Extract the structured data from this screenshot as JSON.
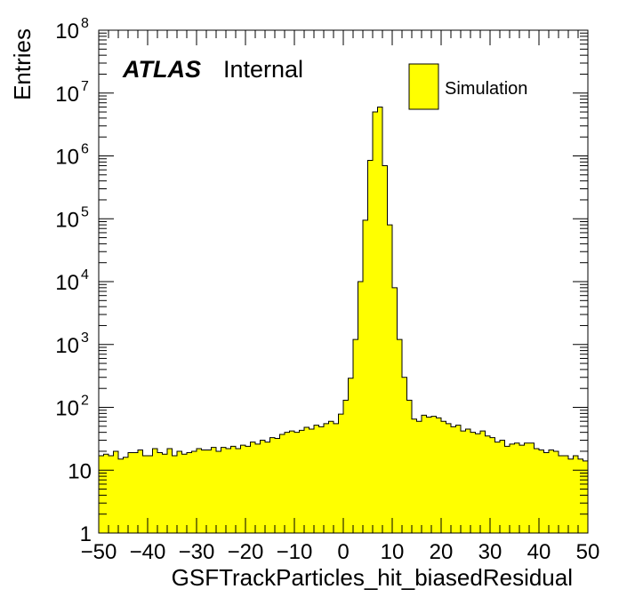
{
  "chart_data": {
    "type": "histogram",
    "title": "",
    "xlabel": "GSFTrackParticles_hit_biasedResidual",
    "ylabel": "Entries",
    "xlim": [
      -50,
      50
    ],
    "ylim": [
      1,
      100000000
    ],
    "yscale": "log",
    "x_tick_labels": [
      "−50",
      "−40",
      "−30",
      "−20",
      "−10",
      "0",
      "10",
      "20",
      "30",
      "40",
      "50"
    ],
    "x_tick_values": [
      -50,
      -40,
      -30,
      -20,
      -10,
      0,
      10,
      20,
      30,
      40,
      50
    ],
    "y_tick_values": [
      1,
      10,
      100,
      1000,
      10000,
      100000,
      1000000,
      10000000,
      100000000
    ],
    "y_tick_labels": [
      {
        "base": "1",
        "exp": ""
      },
      {
        "base": "10",
        "exp": ""
      },
      {
        "base": "10",
        "exp": "2"
      },
      {
        "base": "10",
        "exp": "3"
      },
      {
        "base": "10",
        "exp": "4"
      },
      {
        "base": "10",
        "exp": "5"
      },
      {
        "base": "10",
        "exp": "6"
      },
      {
        "base": "10",
        "exp": "7"
      },
      {
        "base": "10",
        "exp": "8"
      }
    ],
    "bin_edges_start": -50,
    "bin_width": 1,
    "series": [
      {
        "name": "Simulation",
        "color": "#ffff00",
        "values": [
          17,
          18,
          17,
          20,
          15,
          16,
          19,
          19,
          21,
          17,
          17,
          22,
          19,
          18,
          22,
          17,
          20,
          18,
          19,
          20,
          22,
          21,
          21,
          23,
          20,
          23,
          22,
          24,
          22,
          25,
          24,
          28,
          26,
          30,
          28,
          33,
          32,
          37,
          40,
          42,
          40,
          43,
          48,
          45,
          52,
          49,
          55,
          60,
          55,
          78,
          130,
          290,
          1200,
          10000,
          95000,
          850000,
          5000000,
          6000000,
          700000,
          80000,
          8000,
          1200,
          300,
          130,
          65,
          60,
          75,
          70,
          72,
          68,
          60,
          55,
          49,
          52,
          42,
          45,
          40,
          38,
          42,
          35,
          33,
          28,
          30,
          24,
          26,
          27,
          25,
          27,
          27,
          22,
          21,
          19,
          21,
          20,
          17,
          17,
          15,
          17,
          15,
          14
        ]
      }
    ],
    "legend": {
      "position": "top-right",
      "entries": [
        "Simulation"
      ]
    },
    "annotations": {
      "experiment": "ATLAS",
      "status": "Internal"
    },
    "grid": false
  }
}
